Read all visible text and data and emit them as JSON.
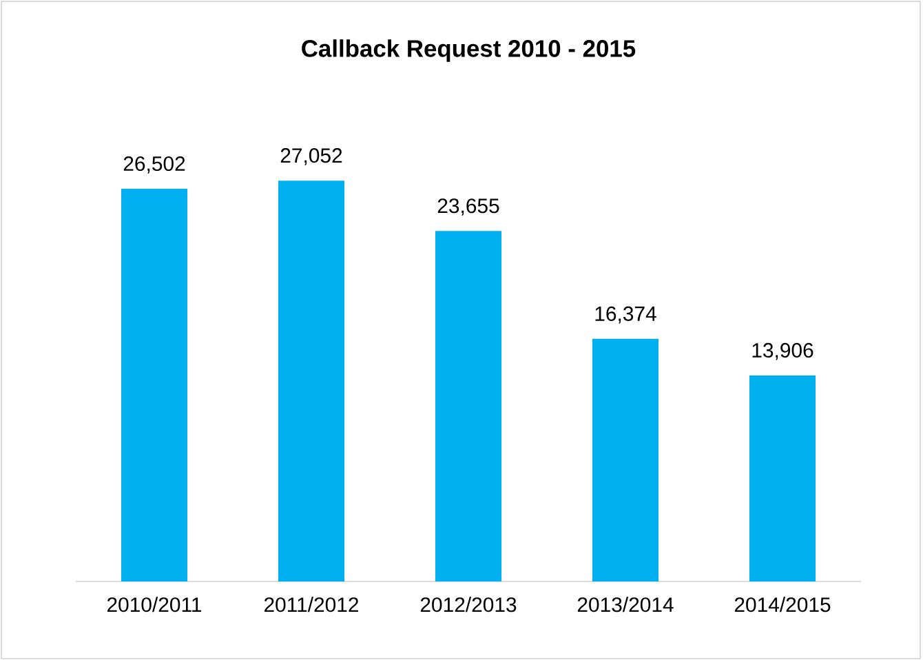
{
  "chart_data": {
    "type": "bar",
    "title": "Callback Request 2010 - 2015",
    "categories": [
      "2010/2011",
      "2011/2012",
      "2012/2013",
      "2013/2014",
      "2014/2015"
    ],
    "values": [
      26502,
      27052,
      23655,
      16374,
      13906
    ],
    "value_labels": [
      "26,502",
      "27,052",
      "23,655",
      "16,374",
      "13,906"
    ],
    "color": "#00b0f0"
  }
}
